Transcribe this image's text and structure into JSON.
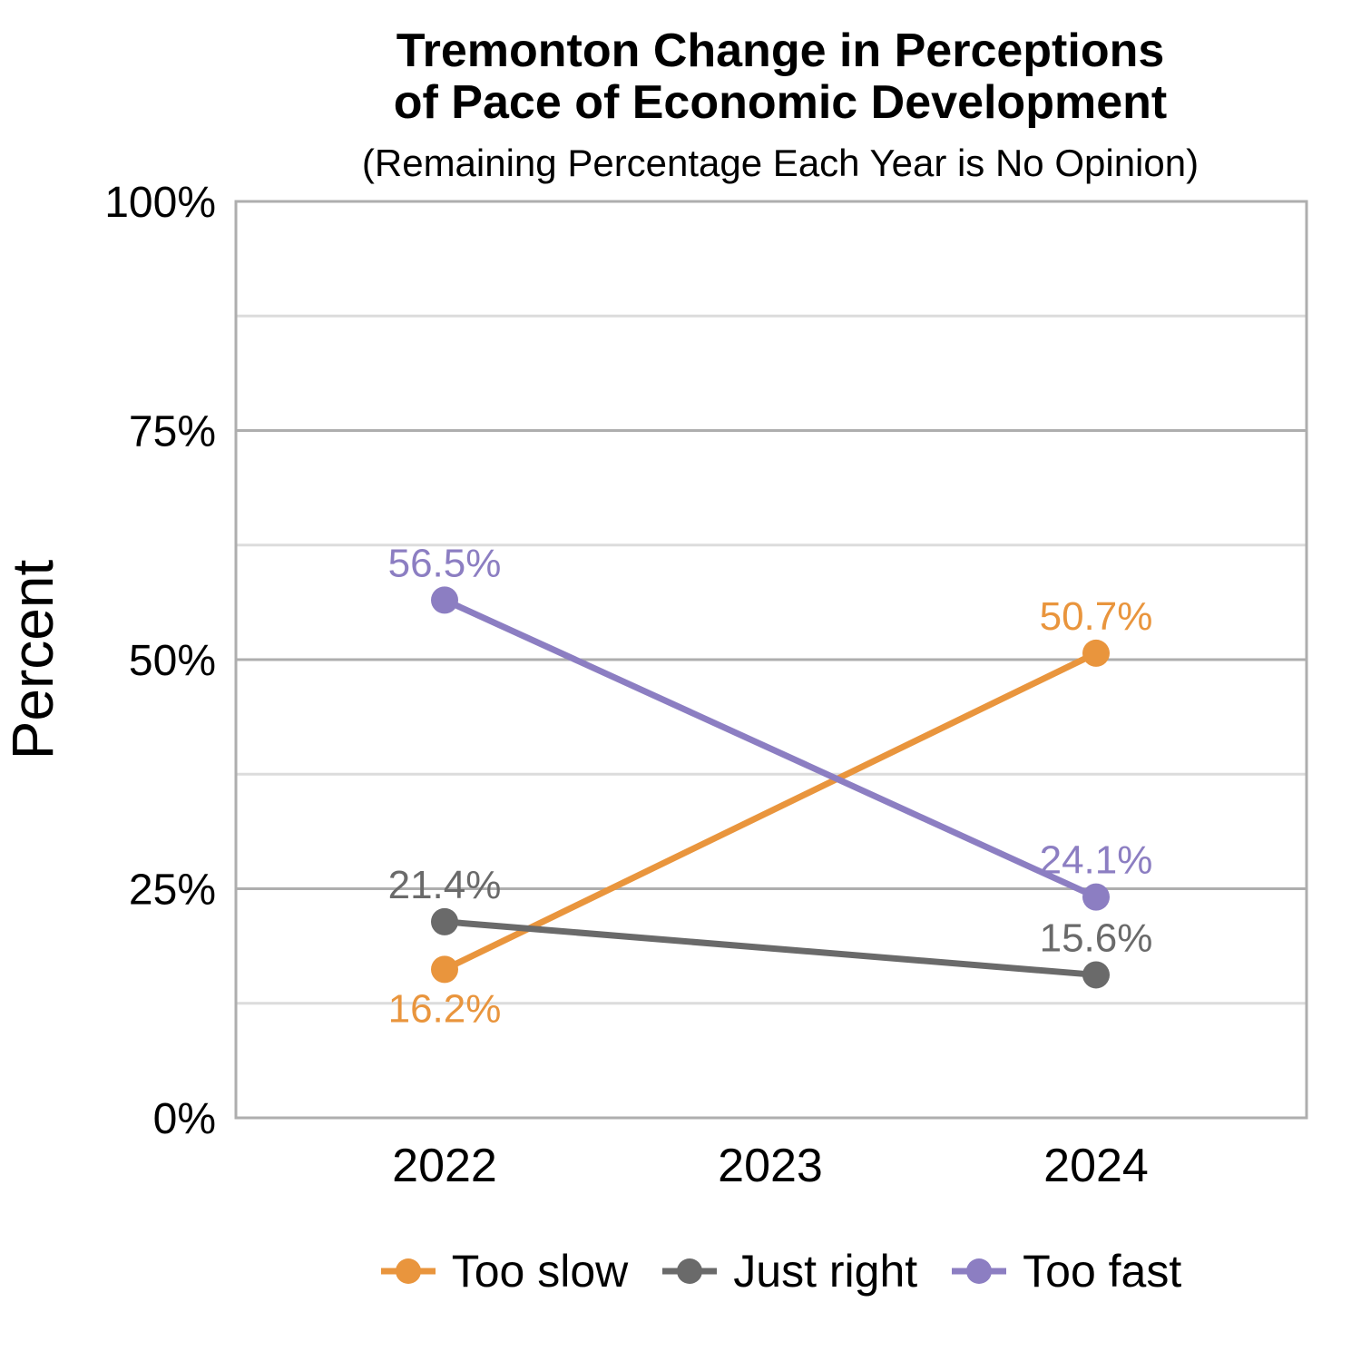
{
  "chart_data": {
    "type": "line",
    "title": "Tremonton Change in Perceptions\nof Pace of Economic Development",
    "subtitle": "(Remaining Percentage Each Year is No Opinion)",
    "xlabel": "",
    "ylabel": "Percent",
    "categories": [
      "2022",
      "2023",
      "2024"
    ],
    "series": [
      {
        "name": "Too slow",
        "color": "#E9953D",
        "values": [
          16.2,
          null,
          50.7
        ],
        "labels": [
          "16.2%",
          null,
          "50.7%"
        ],
        "label_positions": [
          "below",
          null,
          "above"
        ]
      },
      {
        "name": "Just right",
        "color": "#6A6A6A",
        "values": [
          21.4,
          null,
          15.6
        ],
        "labels": [
          "21.4%",
          null,
          "15.6%"
        ],
        "label_positions": [
          "above",
          null,
          "above"
        ]
      },
      {
        "name": "Too fast",
        "color": "#8C7EC2",
        "values": [
          56.5,
          null,
          24.1
        ],
        "labels": [
          "56.5%",
          null,
          "24.1%"
        ],
        "label_positions": [
          "above",
          null,
          "above"
        ]
      }
    ],
    "ylim": [
      0,
      100
    ],
    "yticks": [
      {
        "value": 0,
        "label": "0%"
      },
      {
        "value": 25,
        "label": "25%"
      },
      {
        "value": 50,
        "label": "50%"
      },
      {
        "value": 75,
        "label": "75%"
      },
      {
        "value": 100,
        "label": "100%"
      }
    ],
    "grid": {
      "major": [
        25,
        50,
        75
      ],
      "minor": [
        12.5,
        37.5,
        62.5,
        87.5
      ],
      "major_color": "#AEAEAE",
      "minor_color": "#DCDCDC",
      "border_color": "#AEAEAE"
    },
    "legend_position": "bottom",
    "colors": {
      "background": "#FFFFFF",
      "text": "#000000"
    }
  }
}
